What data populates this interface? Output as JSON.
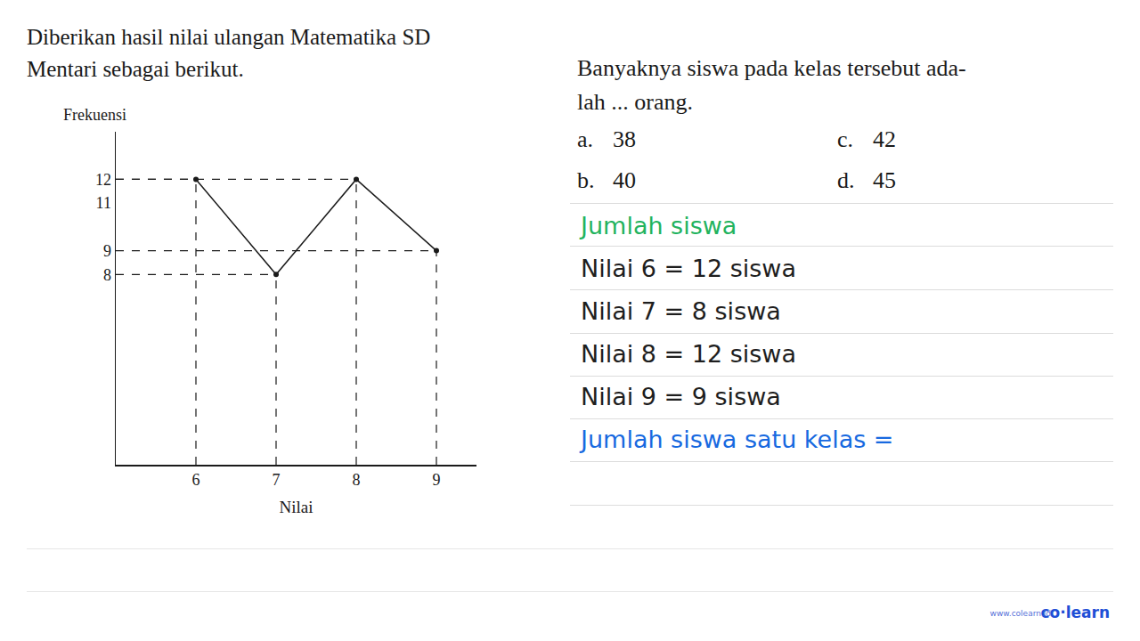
{
  "chart_data": {
    "type": "line",
    "x_label": "Nilai",
    "y_label": "Frekuensi",
    "x": [
      6,
      7,
      8,
      9
    ],
    "values": [
      12,
      8,
      12,
      9
    ],
    "color": "#1a1a1a",
    "marker": "circle",
    "line_style": "solid",
    "xlim": [
      5,
      9.5
    ],
    "xticks": [
      6,
      7,
      8,
      9
    ],
    "ylim": [
      0,
      14
    ],
    "yticks": [
      8,
      9,
      11,
      12
    ],
    "grid": false
  },
  "intro": [
    "Diberikan hasil nilai ulangan Matematika SD",
    "Mentari sebagai berikut."
  ],
  "question": [
    "Banyaknya siswa pada kelas tersebut ada-",
    "lah ... orang."
  ],
  "options": [
    {
      "label": "a.",
      "text": "38"
    },
    {
      "label": "b.",
      "text": "40"
    },
    {
      "label": "c.",
      "text": "42"
    },
    {
      "label": "d.",
      "text": "45"
    }
  ],
  "solution": {
    "heading": "Jumlah siswa",
    "lines": [
      "Nilai 6 = 12 siswa",
      "Nilai 7 = 8 siswa",
      "Nilai 8 = 12 siswa",
      "Nilai 9 = 9 siswa"
    ],
    "conclusion": "Jumlah siswa satu kelas ="
  },
  "brand": {
    "logo": "co·learn",
    "url": "www.colearn.id"
  }
}
